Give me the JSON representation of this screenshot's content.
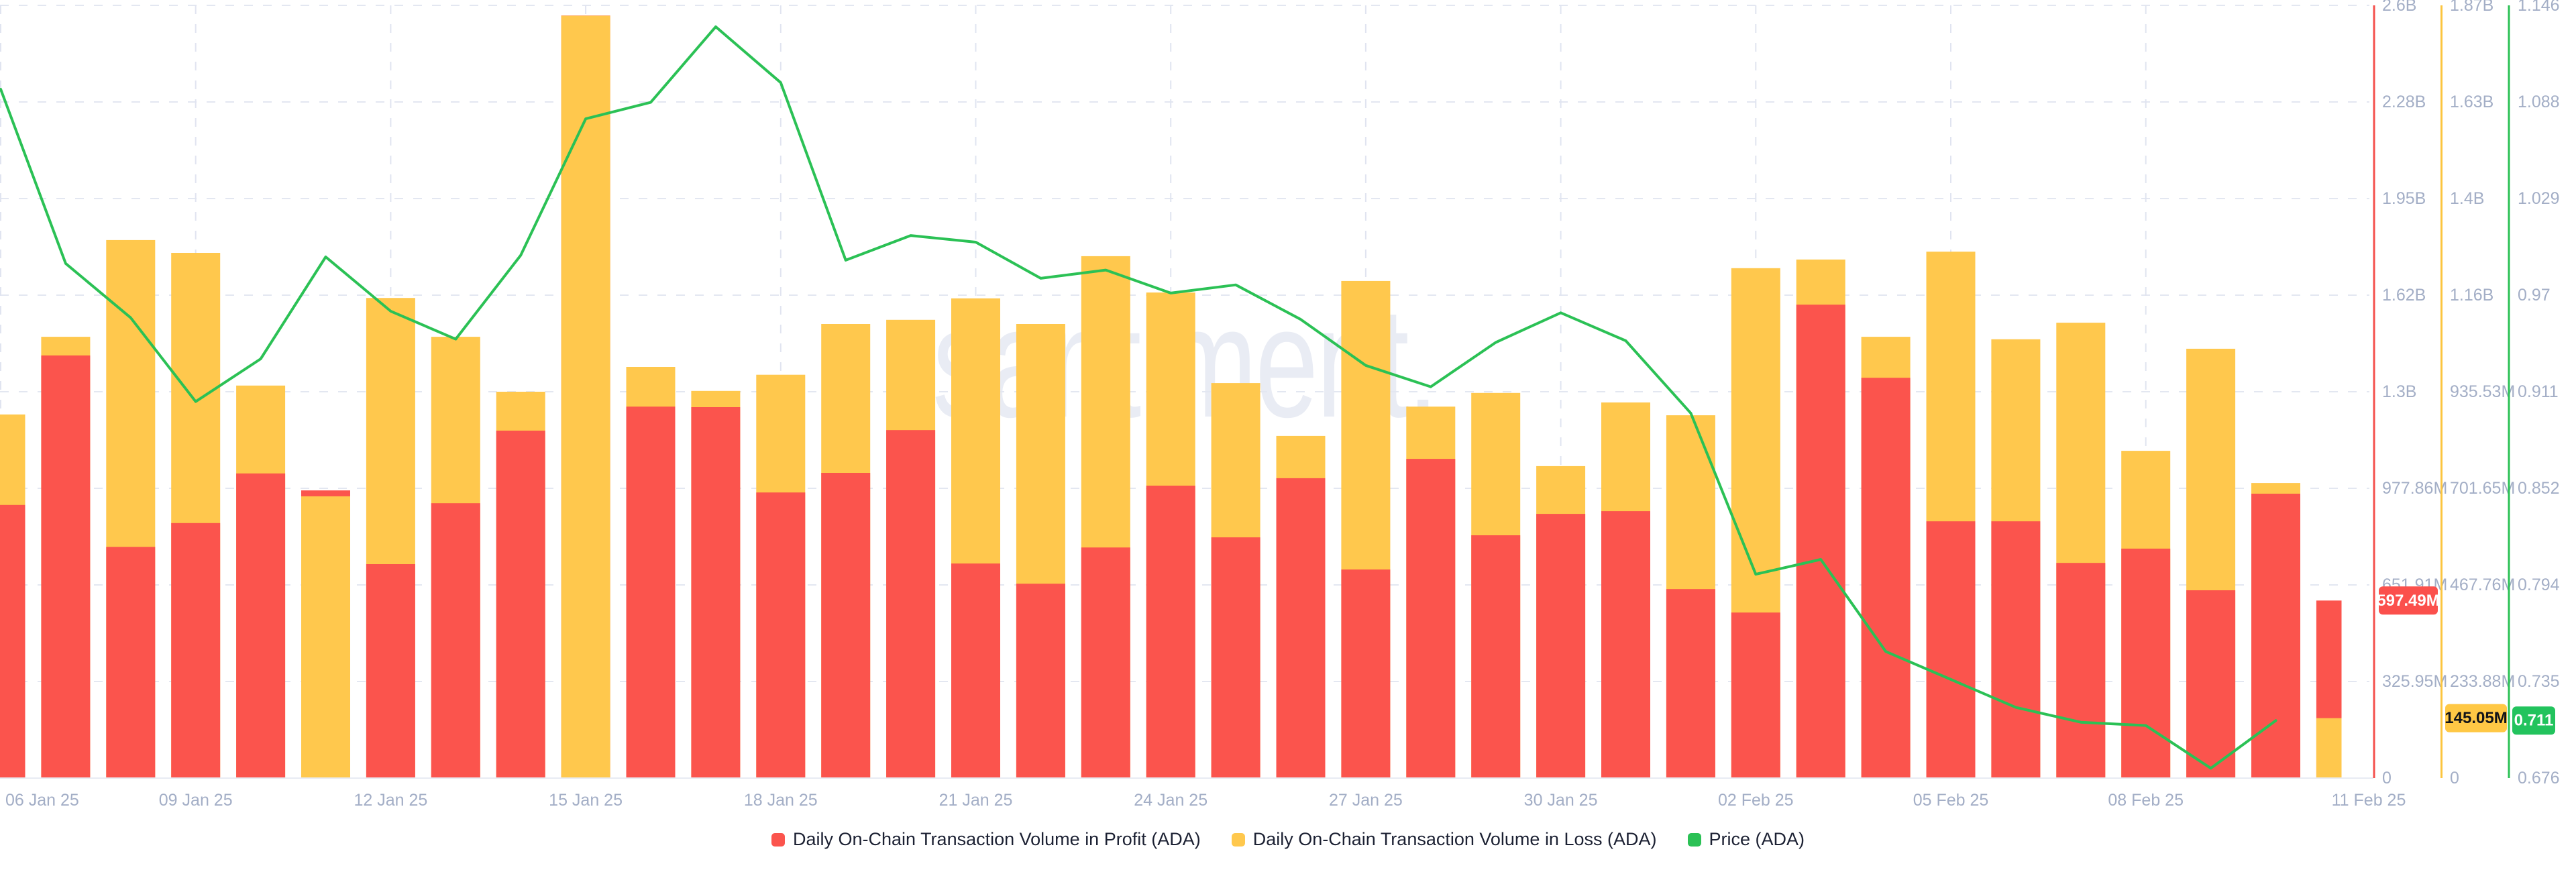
{
  "watermark": "santiment.",
  "chart_data": {
    "type": "bar",
    "title": "",
    "x_dates": [
      "06 Jan 25",
      "07 Jan 25",
      "08 Jan 25",
      "09 Jan 25",
      "10 Jan 25",
      "11 Jan 25",
      "12 Jan 25",
      "13 Jan 25",
      "14 Jan 25",
      "15 Jan 25",
      "16 Jan 25",
      "17 Jan 25",
      "18 Jan 25",
      "19 Jan 25",
      "20 Jan 25",
      "21 Jan 25",
      "22 Jan 25",
      "23 Jan 25",
      "24 Jan 25",
      "25 Jan 25",
      "26 Jan 25",
      "27 Jan 25",
      "28 Jan 25",
      "29 Jan 25",
      "30 Jan 25",
      "31 Jan 25",
      "01 Feb 25",
      "02 Feb 25",
      "03 Feb 25",
      "04 Feb 25",
      "05 Feb 25",
      "06 Feb 25",
      "07 Feb 25",
      "08 Feb 25",
      "09 Feb 25",
      "10 Feb 25",
      "11 Feb 25"
    ],
    "x_tick_labels": [
      "06 Jan 25",
      "09 Jan 25",
      "12 Jan 25",
      "15 Jan 25",
      "18 Jan 25",
      "21 Jan 25",
      "24 Jan 25",
      "27 Jan 25",
      "30 Jan 25",
      "02 Feb 25",
      "05 Feb 25",
      "08 Feb 25",
      "11 Feb 25"
    ],
    "series": [
      {
        "name": "Daily On-Chain Transaction Volume in Profit (ADA)",
        "type": "bar",
        "axis": "profit",
        "color": "#fb544d",
        "unit": "M ADA",
        "values": [
          919,
          1422,
          778,
          858,
          1025,
          968,
          720,
          925,
          1169,
          2566,
          1250,
          1248,
          961,
          1027,
          1171,
          722,
          654,
          776,
          984,
          810,
          1009,
          702,
          1074,
          817,
          889,
          898,
          636,
          557,
          1593,
          1347,
          864,
          864,
          724,
          772,
          632,
          957,
          597.49
        ]
      },
      {
        "name": "Daily On-Chain Transaction Volume in Loss (ADA)",
        "type": "bar",
        "axis": "loss",
        "color": "#ffc84d",
        "unit": "M ADA",
        "values": [
          880,
          1068,
          1302,
          1271,
          950,
          682,
          1162,
          1068,
          935,
          1845,
          995,
          937,
          976,
          1099,
          1109,
          1161,
          1099,
          1263,
          1175,
          956,
          828,
          1203,
          899,
          932,
          755,
          909,
          878,
          1234,
          1255,
          1068,
          1274,
          1062,
          1102,
          792,
          1039,
          714,
          145.05
        ]
      },
      {
        "name": "Price (ADA)",
        "type": "line",
        "axis": "price",
        "color": "#2bc155",
        "unit": "USD",
        "values": [
          1.095,
          0.989,
          0.956,
          0.905,
          0.931,
          0.993,
          0.96,
          0.943,
          0.994,
          1.077,
          1.087,
          1.133,
          1.099,
          0.991,
          1.006,
          1.002,
          0.98,
          0.985,
          0.971,
          0.976,
          0.955,
          0.927,
          0.914,
          0.941,
          0.959,
          0.942,
          0.898,
          0.8,
          0.809,
          0.753,
          0.736,
          0.719,
          0.71,
          0.708,
          0.682,
          0.711,
          null
        ]
      }
    ],
    "axes": {
      "profit": {
        "position": "right",
        "color": "#f4504d",
        "min": 0,
        "max_M": 2600,
        "ticks": [
          "0",
          "325.95M",
          "651.91M",
          "977.86M",
          "1.3B",
          "1.62B",
          "1.95B",
          "2.28B",
          "2.6B"
        ]
      },
      "loss": {
        "position": "right",
        "color": "#fcc53f",
        "min": 0,
        "max_M": 1870,
        "ticks": [
          "0",
          "233.88M",
          "467.76M",
          "701.65M",
          "935.53M",
          "1.16B",
          "1.4B",
          "1.63B",
          "1.87B"
        ]
      },
      "price": {
        "position": "right",
        "color": "#2bc155",
        "min": 0.676,
        "max": 1.146,
        "ticks": [
          "0.676",
          "0.735",
          "0.794",
          "0.852",
          "0.911",
          "0.97",
          "1.029",
          "1.088",
          "1.146"
        ]
      }
    },
    "last_value_badges": {
      "profit": "597.49M",
      "loss": "145.05M",
      "price": "0.711"
    },
    "grid": true,
    "legend_position": "bottom"
  }
}
